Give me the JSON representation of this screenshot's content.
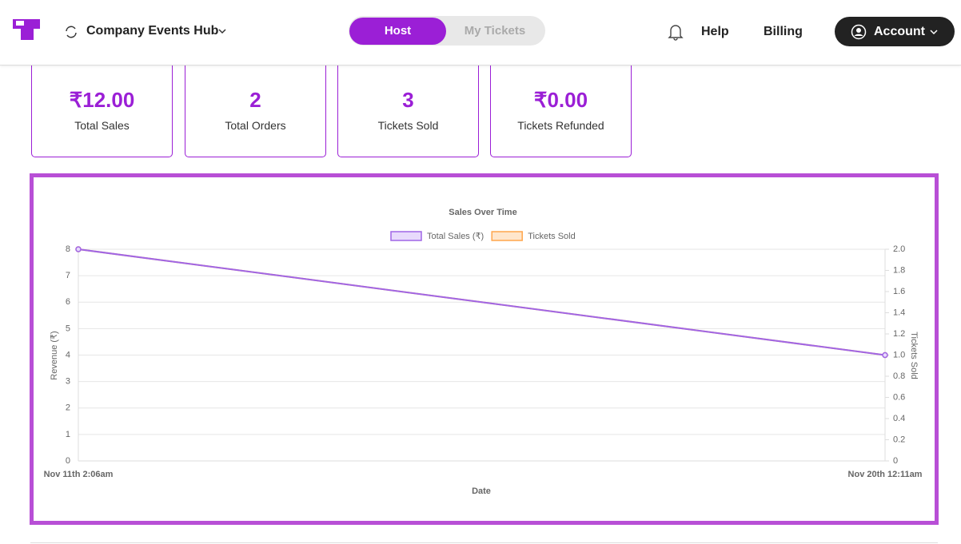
{
  "header": {
    "workspace": "Company Events Hub",
    "tabs": [
      "Host",
      "My Tickets"
    ],
    "links": [
      "Help",
      "Billing"
    ],
    "account": "Account"
  },
  "stats": [
    {
      "value": "₹12.00",
      "label": "Total Sales"
    },
    {
      "value": "2",
      "label": "Total Orders"
    },
    {
      "value": "3",
      "label": "Tickets Sold"
    },
    {
      "value": "₹0.00",
      "label": "Tickets Refunded"
    }
  ],
  "chart_data": {
    "type": "line",
    "title": "Sales Over Time",
    "categories": [
      "Nov 11th 2:06am",
      "Nov 20th 12:11am"
    ],
    "series": [
      {
        "name": "Tickets Sold",
        "color": "#ffa64d",
        "fill": "#ffe6cc",
        "values": [
          2,
          1
        ],
        "axis": "y2"
      },
      {
        "name": "Total Sales (₹)",
        "color": "#a066e6",
        "fill": "#e8dafc",
        "values": [
          8,
          4
        ]
      }
    ],
    "legend_order": [
      1,
      0
    ],
    "ylim": [
      0,
      8
    ],
    "yticks": [
      0,
      1,
      2,
      3,
      4,
      5,
      6,
      7,
      8
    ],
    "y2lim": [
      0,
      2
    ],
    "y2ticks": [
      0,
      0.2,
      0.4,
      0.6,
      0.8,
      {
        "value": 1,
        "label": "1.0"
      },
      1.2,
      1.4,
      1.6,
      1.8,
      {
        "value": 2,
        "label": "2.0"
      }
    ],
    "ylabel": "Revenue (₹)",
    "y2label": "Tickets Sold",
    "xlabel": "Date",
    "grid": true
  }
}
